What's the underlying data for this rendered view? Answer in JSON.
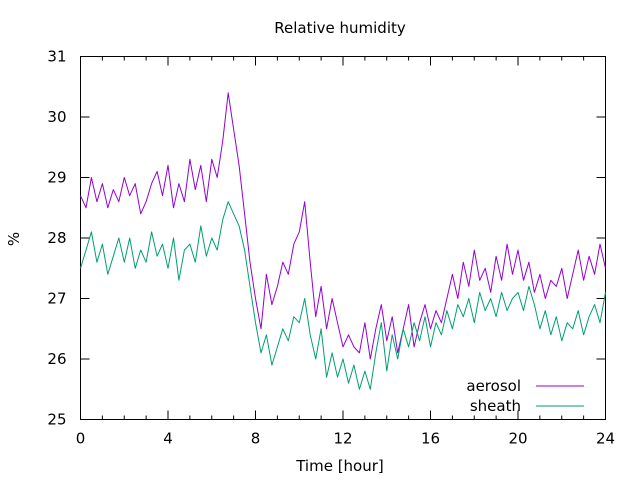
{
  "chart_data": {
    "type": "line",
    "title": "Relative humidity",
    "xlabel": "Time [hour]",
    "ylabel": "%",
    "xlim": [
      0,
      24
    ],
    "ylim": [
      25,
      31
    ],
    "xticks": [
      0,
      4,
      8,
      12,
      16,
      20,
      24
    ],
    "yticks": [
      25,
      26,
      27,
      28,
      29,
      30,
      31
    ],
    "x_minor_ticks": [
      1,
      2,
      3,
      5,
      6,
      7,
      9,
      10,
      11,
      13,
      14,
      15,
      17,
      18,
      19,
      21,
      22,
      23
    ],
    "grid": false,
    "legend_position": "bottom-right",
    "series": [
      {
        "name": "aerosol",
        "color": "#9400d3",
        "x": [
          0,
          0.25,
          0.5,
          0.75,
          1,
          1.25,
          1.5,
          1.75,
          2,
          2.25,
          2.5,
          2.75,
          3,
          3.25,
          3.5,
          3.75,
          4,
          4.25,
          4.5,
          4.75,
          5,
          5.25,
          5.5,
          5.75,
          6,
          6.25,
          6.5,
          6.75,
          7,
          7.25,
          7.5,
          7.75,
          8,
          8.25,
          8.5,
          8.75,
          9,
          9.25,
          9.5,
          9.75,
          10,
          10.25,
          10.5,
          10.75,
          11,
          11.25,
          11.5,
          11.75,
          12,
          12.25,
          12.5,
          12.75,
          13,
          13.25,
          13.5,
          13.75,
          14,
          14.25,
          14.5,
          14.75,
          15,
          15.25,
          15.5,
          15.75,
          16,
          16.25,
          16.5,
          16.75,
          17,
          17.25,
          17.5,
          17.75,
          18,
          18.25,
          18.5,
          18.75,
          19,
          19.25,
          19.5,
          19.75,
          20,
          20.25,
          20.5,
          20.75,
          21,
          21.25,
          21.5,
          21.75,
          22,
          22.25,
          22.5,
          22.75,
          23,
          23.25,
          23.5,
          23.75,
          24
        ],
        "values": [
          28.7,
          28.5,
          29.0,
          28.6,
          28.9,
          28.5,
          28.8,
          28.6,
          29.0,
          28.7,
          28.9,
          28.4,
          28.6,
          28.9,
          29.1,
          28.7,
          29.2,
          28.5,
          28.9,
          28.6,
          29.3,
          28.8,
          29.2,
          28.6,
          29.3,
          29.0,
          29.6,
          30.4,
          29.8,
          29.2,
          28.4,
          27.6,
          27.0,
          26.5,
          27.4,
          26.9,
          27.2,
          27.6,
          27.4,
          27.9,
          28.1,
          28.6,
          27.6,
          26.7,
          27.2,
          26.5,
          27.0,
          26.6,
          26.2,
          26.4,
          26.2,
          26.1,
          26.6,
          26.0,
          26.5,
          26.9,
          26.3,
          26.7,
          26.1,
          26.5,
          26.9,
          26.2,
          26.6,
          26.9,
          26.5,
          26.8,
          26.6,
          27.0,
          27.4,
          27.0,
          27.6,
          27.2,
          27.8,
          27.3,
          27.5,
          27.1,
          27.7,
          27.3,
          27.9,
          27.4,
          27.8,
          27.3,
          27.6,
          27.1,
          27.4,
          27.0,
          27.3,
          27.2,
          27.5,
          27.0,
          27.4,
          27.8,
          27.3,
          27.7,
          27.4,
          27.9,
          27.5
        ]
      },
      {
        "name": "sheath",
        "color": "#009e73",
        "x": [
          0,
          0.25,
          0.5,
          0.75,
          1,
          1.25,
          1.5,
          1.75,
          2,
          2.25,
          2.5,
          2.75,
          3,
          3.25,
          3.5,
          3.75,
          4,
          4.25,
          4.5,
          4.75,
          5,
          5.25,
          5.5,
          5.75,
          6,
          6.25,
          6.5,
          6.75,
          7,
          7.25,
          7.5,
          7.75,
          8,
          8.25,
          8.5,
          8.75,
          9,
          9.25,
          9.5,
          9.75,
          10,
          10.25,
          10.5,
          10.75,
          11,
          11.25,
          11.5,
          11.75,
          12,
          12.25,
          12.5,
          12.75,
          13,
          13.25,
          13.5,
          13.75,
          14,
          14.25,
          14.5,
          14.75,
          15,
          15.25,
          15.5,
          15.75,
          16,
          16.25,
          16.5,
          16.75,
          17,
          17.25,
          17.5,
          17.75,
          18,
          18.25,
          18.5,
          18.75,
          19,
          19.25,
          19.5,
          19.75,
          20,
          20.25,
          20.5,
          20.75,
          21,
          21.25,
          21.5,
          21.75,
          22,
          22.25,
          22.5,
          22.75,
          23,
          23.25,
          23.5,
          23.75,
          24
        ],
        "values": [
          27.5,
          27.8,
          28.1,
          27.6,
          27.9,
          27.4,
          27.7,
          28.0,
          27.6,
          28.0,
          27.5,
          27.8,
          27.6,
          28.1,
          27.7,
          27.9,
          27.5,
          28.0,
          27.3,
          27.8,
          27.9,
          27.6,
          28.2,
          27.7,
          28.0,
          27.8,
          28.3,
          28.6,
          28.4,
          28.2,
          27.8,
          27.2,
          26.6,
          26.1,
          26.4,
          25.9,
          26.2,
          26.5,
          26.3,
          26.7,
          26.6,
          27.0,
          26.4,
          26.0,
          26.5,
          25.7,
          26.1,
          25.7,
          26.0,
          25.6,
          25.9,
          25.5,
          25.8,
          25.5,
          26.1,
          26.6,
          25.8,
          26.4,
          26.0,
          26.5,
          26.2,
          26.6,
          26.3,
          26.7,
          26.2,
          26.6,
          26.4,
          26.8,
          26.5,
          26.9,
          26.7,
          27.0,
          26.6,
          27.1,
          26.8,
          27.0,
          26.7,
          27.1,
          26.8,
          27.0,
          27.1,
          26.8,
          27.2,
          26.9,
          26.5,
          26.8,
          26.4,
          26.7,
          26.3,
          26.6,
          26.5,
          26.8,
          26.4,
          26.7,
          26.9,
          26.6,
          27.1
        ]
      }
    ]
  }
}
